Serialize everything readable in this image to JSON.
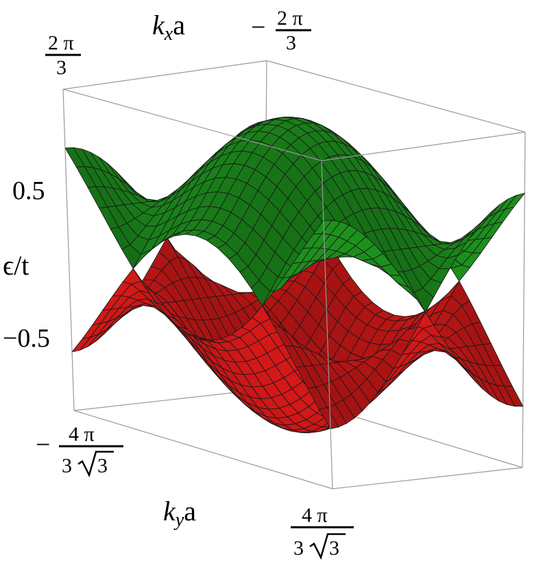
{
  "chart_data": {
    "type": "surface3d",
    "function": "epsilon/t = ±|1 + 2 cos(kx a · 3/2) e^{...}| (graphene nearest-neighbour bands)",
    "x_axis": {
      "label_italic": "k",
      "label_sub": "x",
      "label_rest": "a",
      "range": [
        -2.0944,
        2.0944
      ],
      "ticks": [
        {
          "value": 2.0944,
          "sign": "",
          "num": "2 π",
          "den": "3"
        },
        {
          "value": -2.0944,
          "sign": "−",
          "num": "2 π",
          "den": "3"
        }
      ]
    },
    "y_axis": {
      "label_italic": "k",
      "label_sub": "y",
      "label_rest": "a",
      "range": [
        -2.4184,
        2.4184
      ],
      "ticks": [
        {
          "value": -2.4184,
          "sign": "−",
          "num": "4 π",
          "den_pre": "3",
          "den_root": "3"
        },
        {
          "value": 2.4184,
          "sign": "",
          "num": "4 π",
          "den_pre": "3",
          "den_root": "3"
        }
      ]
    },
    "z_axis": {
      "label": "ϵ/t",
      "range": [
        -1.05,
        1.05
      ],
      "ticks": [
        {
          "value": 0.5,
          "label": "0.5"
        },
        {
          "value": -0.5,
          "label": "−0.5"
        }
      ]
    },
    "series": [
      {
        "band": "upper",
        "sign": 1,
        "color": "#1f9d1f"
      },
      {
        "band": "lower",
        "sign": -1,
        "color": "#e61a1a"
      }
    ],
    "box": true,
    "mesh_lines": true
  }
}
